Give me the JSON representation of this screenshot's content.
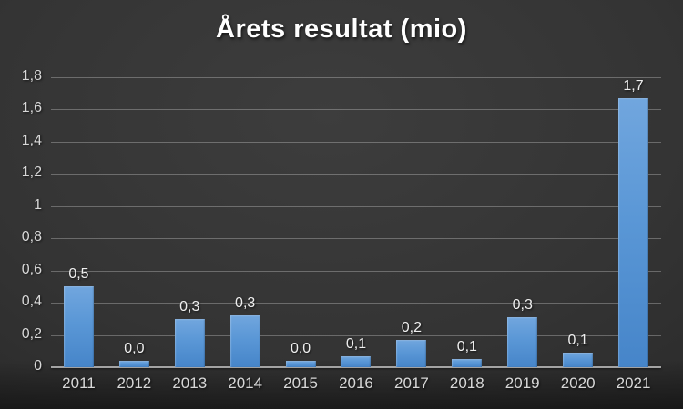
{
  "chart_data": {
    "type": "bar",
    "title": "Årets resultat (mio)",
    "categories": [
      "2011",
      "2012",
      "2013",
      "2014",
      "2015",
      "2016",
      "2017",
      "2018",
      "2019",
      "2020",
      "2021"
    ],
    "values": [
      0.5,
      0.04,
      0.3,
      0.32,
      0.04,
      0.07,
      0.17,
      0.05,
      0.31,
      0.09,
      1.67
    ],
    "value_labels": [
      "0,5",
      "0,0",
      "0,3",
      "0,3",
      "0,0",
      "0,1",
      "0,2",
      "0,1",
      "0,3",
      "0,1",
      "1,7"
    ],
    "yticks": [
      "1,8",
      "1,6",
      "1,4",
      "1,2",
      "1",
      "0,8",
      "0,6",
      "0,4",
      "0,2",
      "0"
    ],
    "ylim": [
      0,
      1.8
    ],
    "xlabel": "",
    "ylabel": "",
    "grid": "horizontal",
    "legend": "none",
    "colors": {
      "bar_top": "#71A6DE",
      "bar_bottom": "#4685C9",
      "gridline": "#767676",
      "axis_line": "#A3A3A3",
      "tick_text": "#D8D8D8",
      "value_text": "#EFEFEF",
      "title_text": "#FFFFFF",
      "background_center": "#3D3D3D",
      "background_edge": "#232323"
    }
  }
}
